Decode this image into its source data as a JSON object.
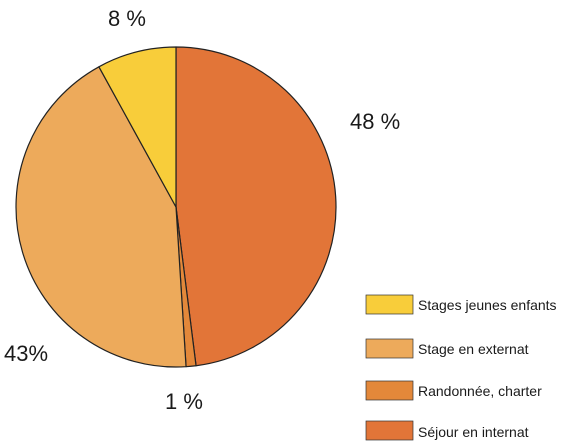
{
  "chart_data": {
    "type": "pie",
    "slices": [
      {
        "label": "Séjour en internat",
        "value": 48,
        "value_label": "48 %",
        "color": "#e27538"
      },
      {
        "label": "Randonnée, charter",
        "value": 1,
        "value_label": "1 %",
        "color": "#e3883a"
      },
      {
        "label": "Stage en externat",
        "value": 43,
        "value_label": "43%",
        "color": "#edaa5b"
      },
      {
        "label": "Stages jeunes enfants",
        "value": 8,
        "value_label": "8 %",
        "color": "#f8cd3a"
      }
    ],
    "legend": {
      "placement": "bottom-right",
      "items": [
        {
          "label": "Stages jeunes enfants",
          "color": "#f8cd3a"
        },
        {
          "label": "Stage en externat",
          "color": "#edaa5b"
        },
        {
          "label": "Randonnée, charter",
          "color": "#e3883a"
        },
        {
          "label": "Séjour en internat",
          "color": "#e27538"
        }
      ]
    },
    "start_angle_deg": 0,
    "direction": "clockwise"
  }
}
